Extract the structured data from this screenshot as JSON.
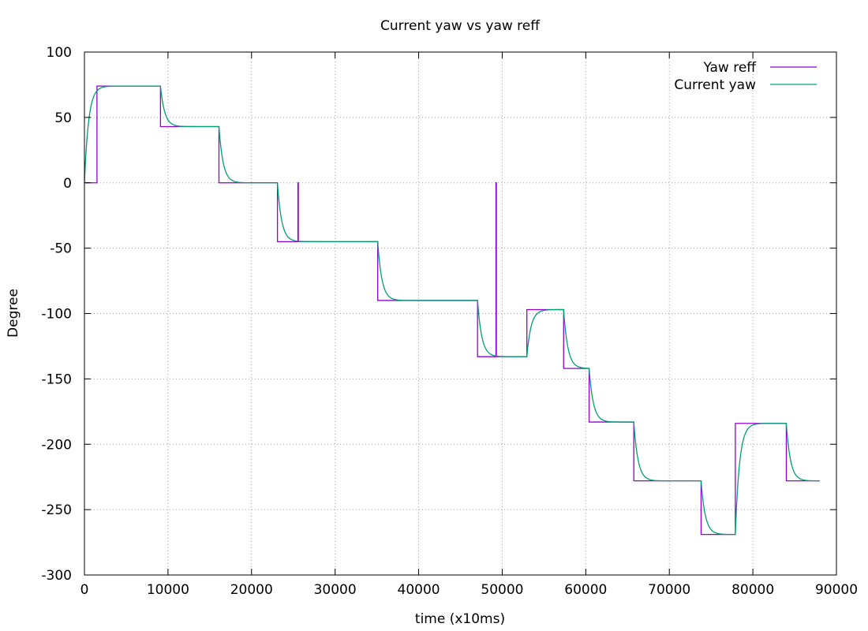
{
  "chart_data": {
    "type": "line",
    "title": "Current yaw vs yaw reff",
    "xlabel": "time (x10ms)",
    "ylabel": "Degree",
    "xlim": [
      0,
      90000
    ],
    "ylim": [
      -300,
      100
    ],
    "xticks": [
      0,
      10000,
      20000,
      30000,
      40000,
      50000,
      60000,
      70000,
      80000,
      90000
    ],
    "yticks": [
      -300,
      -250,
      -200,
      -150,
      -100,
      -50,
      0,
      50,
      100
    ],
    "grid": true,
    "legend_position": "top-right",
    "series": [
      {
        "name": "Yaw reff",
        "color": "#9400d3",
        "style": "step",
        "x": [
          0,
          1500,
          9100,
          16100,
          23100,
          25550,
          25600,
          35100,
          47050,
          49250,
          49300,
          52950,
          57350,
          60400,
          65750,
          73800,
          77900,
          84000,
          88000
        ],
        "values": [
          0,
          74,
          43,
          0,
          -45,
          0,
          -45,
          -90,
          -133,
          0,
          -133,
          -97,
          -142,
          -183,
          -228,
          -269,
          -184,
          -228,
          -228
        ]
      },
      {
        "name": "Current yaw",
        "color": "#009e73",
        "style": "step-response",
        "tau": 500,
        "x": [
          0,
          9100,
          16100,
          23100,
          35100,
          47050,
          52950,
          57350,
          60400,
          65750,
          73800,
          77900,
          84000,
          88000
        ],
        "values": [
          74,
          43,
          0,
          -45,
          -90,
          -133,
          -97,
          -142,
          -183,
          -228,
          -269,
          -184,
          -228,
          -228
        ],
        "start_value": 0
      }
    ]
  }
}
